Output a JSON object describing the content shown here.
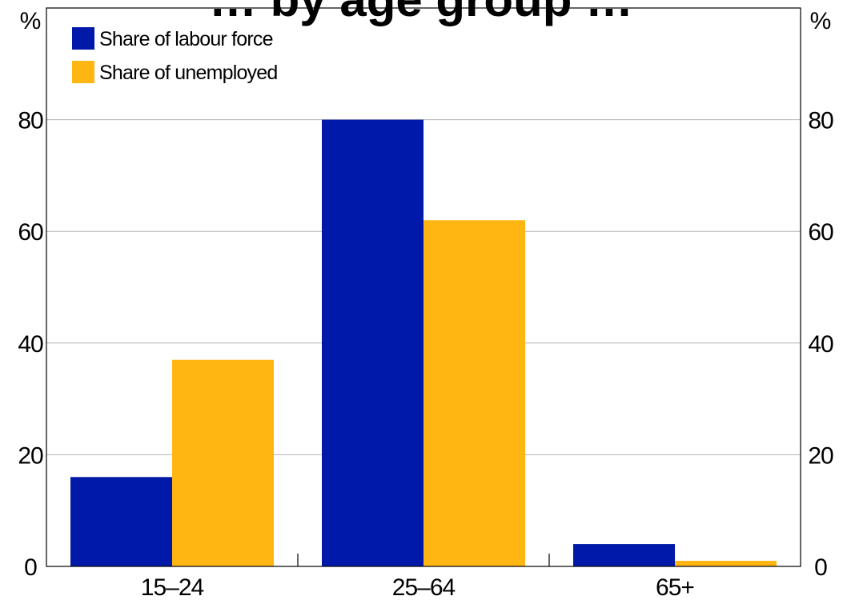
{
  "chart_data": {
    "type": "bar",
    "title": "… by age group …",
    "categories": [
      "15–24",
      "25–64",
      "65+"
    ],
    "series": [
      {
        "name": "Share of labour force",
        "values": [
          16,
          80,
          4
        ],
        "color": "#0019a8"
      },
      {
        "name": "Share of unemployed",
        "values": [
          37,
          62,
          1
        ],
        "color": "#ffb612"
      }
    ],
    "ylim": [
      0,
      100
    ],
    "yticks": [
      0,
      20,
      40,
      60,
      80
    ],
    "ylabel_left": "%",
    "ylabel_right": "%",
    "grid": true,
    "legend_position": "top-left"
  }
}
